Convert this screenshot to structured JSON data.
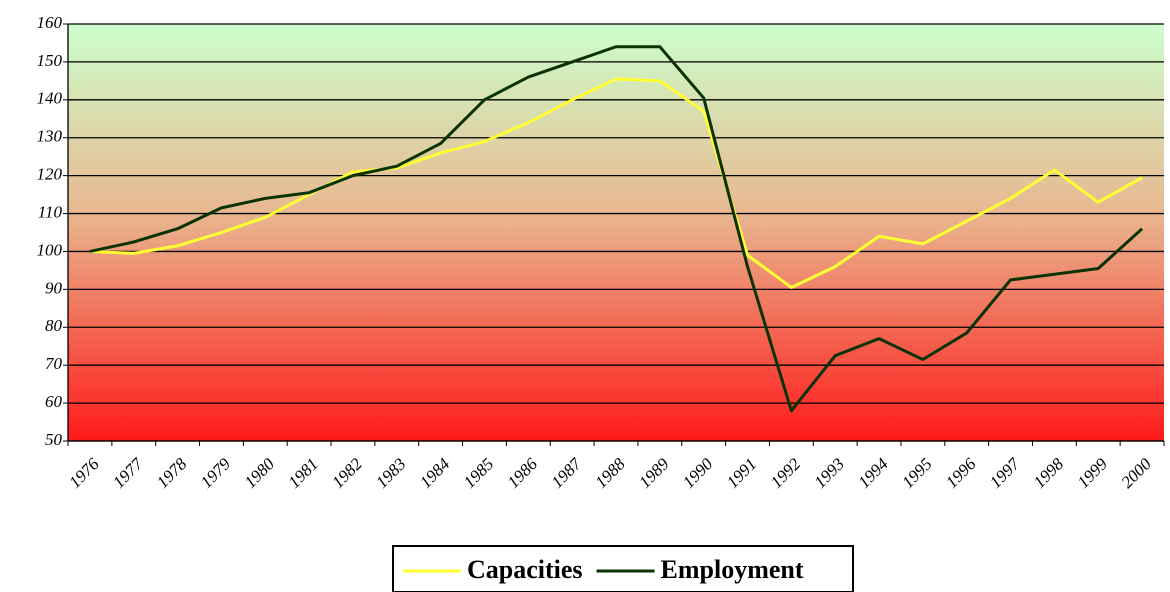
{
  "chart_data": {
    "type": "line",
    "categories": [
      "1976",
      "1977",
      "1978",
      "1979",
      "1980",
      "1981",
      "1982",
      "1983",
      "1984",
      "1985",
      "1986",
      "1987",
      "1988",
      "1989",
      "1990",
      "1991",
      "1992",
      "1993",
      "1994",
      "1995",
      "1996",
      "1997",
      "1998",
      "1999",
      "2000"
    ],
    "series": [
      {
        "name": "Capacities",
        "color": "#ffff33",
        "values": [
          100,
          99.5,
          101.5,
          105,
          109,
          115,
          121,
          122,
          126,
          129,
          134,
          140,
          145.5,
          145,
          137,
          99,
          90.5,
          96,
          104,
          102,
          108,
          114,
          121.5,
          113,
          119.5
        ]
      },
      {
        "name": "Employment",
        "color": "#0a3300",
        "values": [
          100,
          102.5,
          106,
          111.5,
          114,
          115.5,
          120,
          122.5,
          128.5,
          140,
          146,
          150,
          154,
          154,
          140.5,
          96,
          58,
          72.5,
          77,
          71.5,
          78.5,
          92.5,
          94,
          95.5,
          106
        ]
      }
    ],
    "ylim": [
      50,
      160
    ],
    "yticks": [
      50,
      60,
      70,
      80,
      90,
      100,
      110,
      120,
      130,
      140,
      150,
      160
    ],
    "grid": true
  }
}
